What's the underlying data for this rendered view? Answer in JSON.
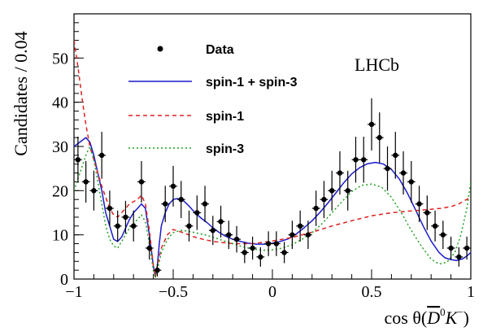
{
  "chart_data": {
    "type": "scatter",
    "xlabel_prefix": "cos θ(",
    "xlabel_main": "D",
    "xlabel_sup": "0",
    "xlabel_tail": "K",
    "xlabel_tail_sup": "−",
    "xlabel_suffix": ")",
    "ylabel": "Candidates / 0.04",
    "xlim": [
      -1,
      1
    ],
    "ylim": [
      0,
      60
    ],
    "x_ticks": [
      {
        "value": -1,
        "label": "−1"
      },
      {
        "value": -0.5,
        "label": "−0.5"
      },
      {
        "value": 0,
        "label": "0"
      },
      {
        "value": 0.5,
        "label": "0.5"
      },
      {
        "value": 1,
        "label": "1"
      }
    ],
    "y_ticks": [
      {
        "value": 0,
        "label": "0"
      },
      {
        "value": 10,
        "label": "10"
      },
      {
        "value": 20,
        "label": "20"
      },
      {
        "value": 30,
        "label": "30"
      },
      {
        "value": 40,
        "label": "40"
      },
      {
        "value": 50,
        "label": "50"
      }
    ],
    "annotation": "LHCb",
    "legend": [
      {
        "label": "Data",
        "style": "marker",
        "color": "#000000"
      },
      {
        "label": "spin-1 + spin-3",
        "style": "solid",
        "color": "#1a1acc"
      },
      {
        "label": "spin-1",
        "style": "dashed",
        "color": "#e02020"
      },
      {
        "label": "spin-3",
        "style": "dotted",
        "color": "#20a020"
      }
    ],
    "data_points": [
      {
        "x": -0.98,
        "y": 27,
        "err": 5.2
      },
      {
        "x": -0.94,
        "y": 22,
        "err": 4.7
      },
      {
        "x": -0.9,
        "y": 20,
        "err": 4.5
      },
      {
        "x": -0.86,
        "y": 28,
        "err": 5.3
      },
      {
        "x": -0.82,
        "y": 16,
        "err": 4.0
      },
      {
        "x": -0.78,
        "y": 12,
        "err": 3.5
      },
      {
        "x": -0.74,
        "y": 14,
        "err": 3.7
      },
      {
        "x": -0.7,
        "y": 12,
        "err": 3.5
      },
      {
        "x": -0.66,
        "y": 22,
        "err": 4.7
      },
      {
        "x": -0.62,
        "y": 7,
        "err": 2.6
      },
      {
        "x": -0.58,
        "y": 2,
        "err": 1.4
      },
      {
        "x": -0.54,
        "y": 17,
        "err": 4.1
      },
      {
        "x": -0.5,
        "y": 21,
        "err": 4.6
      },
      {
        "x": -0.46,
        "y": 18,
        "err": 4.2
      },
      {
        "x": -0.42,
        "y": 12,
        "err": 3.5
      },
      {
        "x": -0.38,
        "y": 15,
        "err": 3.9
      },
      {
        "x": -0.34,
        "y": 17,
        "err": 4.1
      },
      {
        "x": -0.3,
        "y": 11,
        "err": 3.3
      },
      {
        "x": -0.26,
        "y": 13,
        "err": 3.6
      },
      {
        "x": -0.22,
        "y": 10,
        "err": 3.2
      },
      {
        "x": -0.18,
        "y": 9,
        "err": 3.0
      },
      {
        "x": -0.14,
        "y": 6,
        "err": 2.4
      },
      {
        "x": -0.1,
        "y": 7,
        "err": 2.6
      },
      {
        "x": -0.06,
        "y": 5,
        "err": 2.2
      },
      {
        "x": -0.02,
        "y": 8,
        "err": 2.8
      },
      {
        "x": 0.02,
        "y": 8,
        "err": 2.8
      },
      {
        "x": 0.06,
        "y": 6,
        "err": 2.4
      },
      {
        "x": 0.1,
        "y": 10,
        "err": 3.2
      },
      {
        "x": 0.14,
        "y": 12,
        "err": 3.5
      },
      {
        "x": 0.18,
        "y": 10,
        "err": 3.2
      },
      {
        "x": 0.22,
        "y": 16,
        "err": 4.0
      },
      {
        "x": 0.26,
        "y": 18,
        "err": 4.2
      },
      {
        "x": 0.3,
        "y": 20,
        "err": 4.5
      },
      {
        "x": 0.34,
        "y": 24,
        "err": 4.9
      },
      {
        "x": 0.38,
        "y": 20,
        "err": 4.5
      },
      {
        "x": 0.42,
        "y": 27,
        "err": 5.2
      },
      {
        "x": 0.46,
        "y": 27,
        "err": 5.2
      },
      {
        "x": 0.5,
        "y": 35,
        "err": 5.9
      },
      {
        "x": 0.54,
        "y": 32,
        "err": 5.7
      },
      {
        "x": 0.58,
        "y": 25,
        "err": 5.0
      },
      {
        "x": 0.62,
        "y": 28,
        "err": 5.3
      },
      {
        "x": 0.66,
        "y": 24,
        "err": 4.9
      },
      {
        "x": 0.7,
        "y": 22,
        "err": 4.7
      },
      {
        "x": 0.74,
        "y": 17,
        "err": 4.1
      },
      {
        "x": 0.78,
        "y": 15,
        "err": 3.9
      },
      {
        "x": 0.82,
        "y": 12,
        "err": 3.5
      },
      {
        "x": 0.86,
        "y": 10,
        "err": 3.2
      },
      {
        "x": 0.9,
        "y": 7,
        "err": 2.6
      },
      {
        "x": 0.94,
        "y": 5,
        "err": 2.2
      },
      {
        "x": 0.98,
        "y": 7,
        "err": 2.6
      }
    ],
    "series": [
      {
        "name": "spin-1 + spin-3",
        "color": "#1a1acc",
        "dash": "none",
        "x": [
          -1,
          -0.97,
          -0.94,
          -0.92,
          -0.9,
          -0.88,
          -0.86,
          -0.84,
          -0.82,
          -0.8,
          -0.78,
          -0.76,
          -0.74,
          -0.72,
          -0.7,
          -0.68,
          -0.66,
          -0.64,
          -0.62,
          -0.6,
          -0.59,
          -0.58,
          -0.57,
          -0.56,
          -0.54,
          -0.52,
          -0.5,
          -0.48,
          -0.45,
          -0.42,
          -0.39,
          -0.36,
          -0.33,
          -0.3,
          -0.27,
          -0.24,
          -0.2,
          -0.16,
          -0.12,
          -0.08,
          -0.04,
          0,
          0.04,
          0.08,
          0.12,
          0.16,
          0.2,
          0.24,
          0.28,
          0.32,
          0.36,
          0.4,
          0.44,
          0.48,
          0.52,
          0.56,
          0.6,
          0.64,
          0.68,
          0.72,
          0.76,
          0.8,
          0.84,
          0.87,
          0.9,
          0.93,
          0.96,
          0.98,
          1
        ],
        "y": [
          30,
          31,
          32,
          31,
          28,
          24,
          20,
          15,
          12,
          9,
          8.5,
          9.5,
          11.5,
          13.5,
          15,
          16,
          17,
          16,
          10,
          3,
          0.5,
          3,
          8,
          12,
          15,
          17,
          18,
          18.2,
          17.8,
          16.5,
          15,
          13.8,
          12.8,
          11.6,
          10.6,
          9.8,
          9,
          8.5,
          8.1,
          7.9,
          7.9,
          8.1,
          8.5,
          9.1,
          10.2,
          11.6,
          13.2,
          15.1,
          17.2,
          19.5,
          21.8,
          23.8,
          25.2,
          26.1,
          26.4,
          26,
          24.8,
          22.6,
          19.5,
          15.8,
          12,
          8.6,
          6,
          4.8,
          4.4,
          4.2,
          4.6,
          5.2,
          6
        ]
      },
      {
        "name": "spin-1",
        "color": "#e02020",
        "dash": "5,4",
        "x": [
          -1,
          -0.98,
          -0.96,
          -0.94,
          -0.92,
          -0.9,
          -0.88,
          -0.86,
          -0.84,
          -0.82,
          -0.8,
          -0.78,
          -0.76,
          -0.74,
          -0.72,
          -0.7,
          -0.68,
          -0.66,
          -0.64,
          -0.62,
          -0.6,
          -0.59,
          -0.58,
          -0.56,
          -0.53,
          -0.5,
          -0.45,
          -0.4,
          -0.35,
          -0.3,
          -0.2,
          -0.1,
          0,
          0.1,
          0.2,
          0.3,
          0.4,
          0.5,
          0.6,
          0.7,
          0.8,
          0.85,
          0.9,
          0.94,
          0.97,
          1
        ],
        "y": [
          54,
          48,
          41,
          35,
          30,
          27,
          24,
          21,
          18.5,
          16,
          14.5,
          14,
          15,
          16,
          17,
          17.5,
          18,
          19,
          17,
          11,
          3,
          0.5,
          3,
          7,
          10,
          11.2,
          10.5,
          9.6,
          9,
          8.5,
          8,
          8,
          8.6,
          9.4,
          10.6,
          12,
          13.2,
          14.3,
          15,
          15.4,
          15.8,
          16,
          16.4,
          17,
          17.8,
          18.5
        ]
      },
      {
        "name": "spin-3",
        "color": "#20a020",
        "dash": "2,3",
        "x": [
          -1,
          -0.97,
          -0.94,
          -0.92,
          -0.9,
          -0.88,
          -0.86,
          -0.84,
          -0.82,
          -0.8,
          -0.78,
          -0.76,
          -0.74,
          -0.72,
          -0.7,
          -0.68,
          -0.66,
          -0.64,
          -0.62,
          -0.6,
          -0.59,
          -0.58,
          -0.56,
          -0.54,
          -0.52,
          -0.5,
          -0.46,
          -0.42,
          -0.38,
          -0.34,
          -0.3,
          -0.25,
          -0.2,
          -0.15,
          -0.1,
          -0.05,
          0,
          0.05,
          0.1,
          0.15,
          0.2,
          0.25,
          0.3,
          0.35,
          0.4,
          0.45,
          0.5,
          0.55,
          0.6,
          0.65,
          0.7,
          0.75,
          0.8,
          0.84,
          0.88,
          0.92,
          0.95,
          0.98,
          1
        ],
        "y": [
          20,
          24,
          28,
          30,
          27,
          22,
          17,
          12,
          9,
          7.5,
          7,
          8.5,
          10,
          11.5,
          12.5,
          13.5,
          14.5,
          13,
          8,
          2,
          0.3,
          2,
          6,
          8,
          9.5,
          10.5,
          11,
          10.8,
          10.4,
          10,
          9.5,
          8.7,
          8,
          7.3,
          6.8,
          6.5,
          6.6,
          7,
          7.8,
          9,
          10.5,
          12.5,
          15,
          17.5,
          19.8,
          21.2,
          21.5,
          20.8,
          18.5,
          15,
          11,
          7.5,
          4.5,
          3.4,
          3.8,
          6,
          10,
          16,
          22
        ]
      }
    ]
  }
}
